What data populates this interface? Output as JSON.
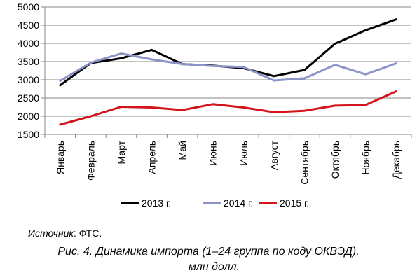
{
  "chart_data": {
    "type": "line",
    "title": "",
    "xlabel": "",
    "ylabel": "",
    "categories": [
      "Январь",
      "Февраль",
      "Март",
      "Апрель",
      "Май",
      "Июнь",
      "Июль",
      "Август",
      "Сентябрь",
      "Октябрь",
      "Ноябрь",
      "Декабрь"
    ],
    "ylim": [
      1500,
      5000
    ],
    "yticks": [
      1500,
      2000,
      2500,
      3000,
      3500,
      4000,
      4500,
      5000
    ],
    "grid": "horizontal",
    "legend_position": "bottom",
    "series": [
      {
        "name": "2013 г.",
        "color": "#000000",
        "values": [
          2850,
          3460,
          3590,
          3820,
          3430,
          3390,
          3320,
          3100,
          3270,
          3990,
          4360,
          4660
        ]
      },
      {
        "name": "2014 г.",
        "color": "#8b93c8",
        "values": [
          2970,
          3470,
          3720,
          3560,
          3430,
          3380,
          3350,
          2980,
          3040,
          3410,
          3150,
          3450
        ]
      },
      {
        "name": "2015 г.",
        "color": "#d4141c",
        "values": [
          1770,
          2000,
          2260,
          2240,
          2170,
          2330,
          2240,
          2110,
          2150,
          2290,
          2310,
          2680
        ]
      }
    ]
  },
  "source": {
    "label": "Источник",
    "separator": ":",
    "value": " ФТС."
  },
  "caption": {
    "line1": "Рис. 4. Динамика импорта (1–24 группа по коду ОКВЭД),",
    "line2": "млн долл."
  }
}
